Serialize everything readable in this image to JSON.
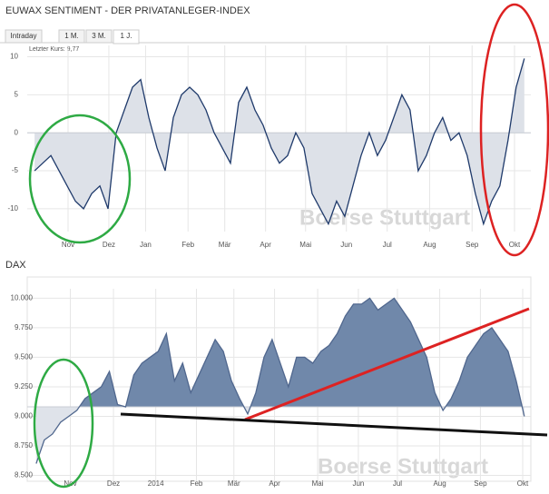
{
  "chart_data": [
    {
      "type": "area",
      "title": "EUWAX SENTIMENT - DER PRIVATANLEGER-INDEX",
      "tabs": [
        "Intraday",
        "1 M.",
        "3 M.",
        "1 J."
      ],
      "annotation": "Letzter Kurs: 9,77",
      "watermark": "Boerse Stuttgart",
      "values": [
        -5,
        -4,
        -3,
        -5,
        -7,
        -9,
        -10,
        -8,
        -7,
        -10,
        0,
        3,
        6,
        7,
        2,
        -2,
        -5,
        2,
        5,
        6,
        5,
        3,
        0,
        -2,
        -4,
        4,
        6,
        3,
        1,
        -2,
        -4,
        -3,
        0,
        -2,
        -8,
        -10,
        -12,
        -9,
        -11,
        -7,
        -3,
        0,
        -3,
        -1,
        2,
        5,
        3,
        -5,
        -3,
        0,
        2,
        -1,
        0,
        -3,
        -8,
        -12,
        -9,
        -7,
        -1,
        6,
        9.77
      ],
      "baseline": 0,
      "xlim": [
        -0.9,
        60.8
      ],
      "ylim": [
        -13,
        11.5
      ],
      "yticks": [
        10,
        5,
        0,
        -5,
        -10
      ],
      "xticks": [
        {
          "value": 4.1,
          "label": "Nov"
        },
        {
          "value": 9.1,
          "label": "Dez"
        },
        {
          "value": 13.6,
          "label": "Jan"
        },
        {
          "value": 18.8,
          "label": "Feb"
        },
        {
          "value": 23.3,
          "label": "Mär"
        },
        {
          "value": 28.3,
          "label": "Apr"
        },
        {
          "value": 33.2,
          "label": "Mai"
        },
        {
          "value": 38.2,
          "label": "Jun"
        },
        {
          "value": 43.2,
          "label": "Jul"
        },
        {
          "value": 48.4,
          "label": "Aug"
        },
        {
          "value": 53.6,
          "label": "Sep"
        },
        {
          "value": 58.8,
          "label": "Okt"
        }
      ],
      "color": "#1f3a6b",
      "fill": "#dde1e8",
      "fill_below": "#dde1e8"
    },
    {
      "type": "area",
      "title": "DAX",
      "watermark": "Boerse Stuttgart",
      "values": [
        8600,
        8800,
        8850,
        8950,
        9000,
        9050,
        9150,
        9200,
        9250,
        9380,
        9100,
        9080,
        9350,
        9450,
        9500,
        9550,
        9700,
        9300,
        9450,
        9200,
        9350,
        9500,
        9650,
        9550,
        9300,
        9150,
        9020,
        9200,
        9500,
        9650,
        9450,
        9250,
        9500,
        9500,
        9450,
        9550,
        9600,
        9700,
        9850,
        9950,
        9950,
        10000,
        9900,
        9950,
        10000,
        9900,
        9800,
        9650,
        9500,
        9200,
        9050,
        9150,
        9300,
        9500,
        9600,
        9700,
        9750,
        9650,
        9550,
        9300,
        9000
      ],
      "baseline": 9080,
      "xlim": [
        -1.1,
        60.8
      ],
      "ylim": [
        8450,
        10080
      ],
      "yticks": [
        {
          "value": 10000,
          "label": "10.000"
        },
        {
          "value": 9750,
          "label": "9.750"
        },
        {
          "value": 9500,
          "label": "9.500"
        },
        {
          "value": 9250,
          "label": "9.250"
        },
        {
          "value": 9000,
          "label": "9.000"
        },
        {
          "value": 8750,
          "label": "8.750"
        },
        {
          "value": 8500,
          "label": "8.500"
        }
      ],
      "xticks": [
        {
          "value": 4.2,
          "label": "Nov"
        },
        {
          "value": 9.5,
          "label": "Dez"
        },
        {
          "value": 14.7,
          "label": "2014"
        },
        {
          "value": 19.7,
          "label": "Feb"
        },
        {
          "value": 24.3,
          "label": "Mär"
        },
        {
          "value": 29.3,
          "label": "Apr"
        },
        {
          "value": 34.6,
          "label": "Mai"
        },
        {
          "value": 39.6,
          "label": "Jun"
        },
        {
          "value": 44.4,
          "label": "Jul"
        },
        {
          "value": 49.6,
          "label": "Aug"
        },
        {
          "value": 54.6,
          "label": "Sep"
        },
        {
          "value": 59.8,
          "label": "Okt"
        }
      ],
      "color": "#50678e",
      "fill": "#7088aa",
      "fill_below": "#dfe3ea"
    }
  ]
}
